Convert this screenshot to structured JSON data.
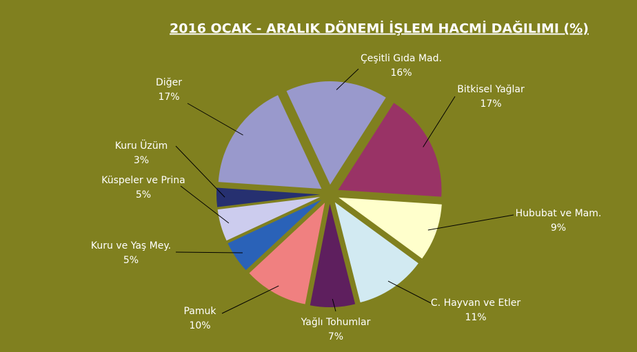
{
  "chart_data": {
    "type": "pie",
    "title": "2016 OCAK - ARALIK DÖNEMİ İŞLEM HACMİ DAĞILIMI (%)",
    "categories": [
      "Çeşitli Gıda Mad.",
      "Bitkisel Yağlar",
      "Hububat ve Mam.",
      "C. Hayvan ve Etler",
      "Yağlı Tohumlar",
      "Pamuk",
      "Kuru ve Yaş Mey.",
      "Küspeler ve Prina",
      "Kuru Üzüm",
      "Diğer"
    ],
    "values": [
      16,
      17,
      9,
      11,
      7,
      10,
      5,
      5,
      3,
      17
    ],
    "value_labels": [
      "16%",
      "17%",
      "9%",
      "11%",
      "7%",
      "10%",
      "5%",
      "5%",
      "3%",
      "17%"
    ],
    "colors": [
      "#9999cc",
      "#993366",
      "#ffffcc",
      "#d2eaf2",
      "#5e1f5e",
      "#f08080",
      "#2a62b8",
      "#ccccee",
      "#263070",
      "#9999cc"
    ]
  }
}
